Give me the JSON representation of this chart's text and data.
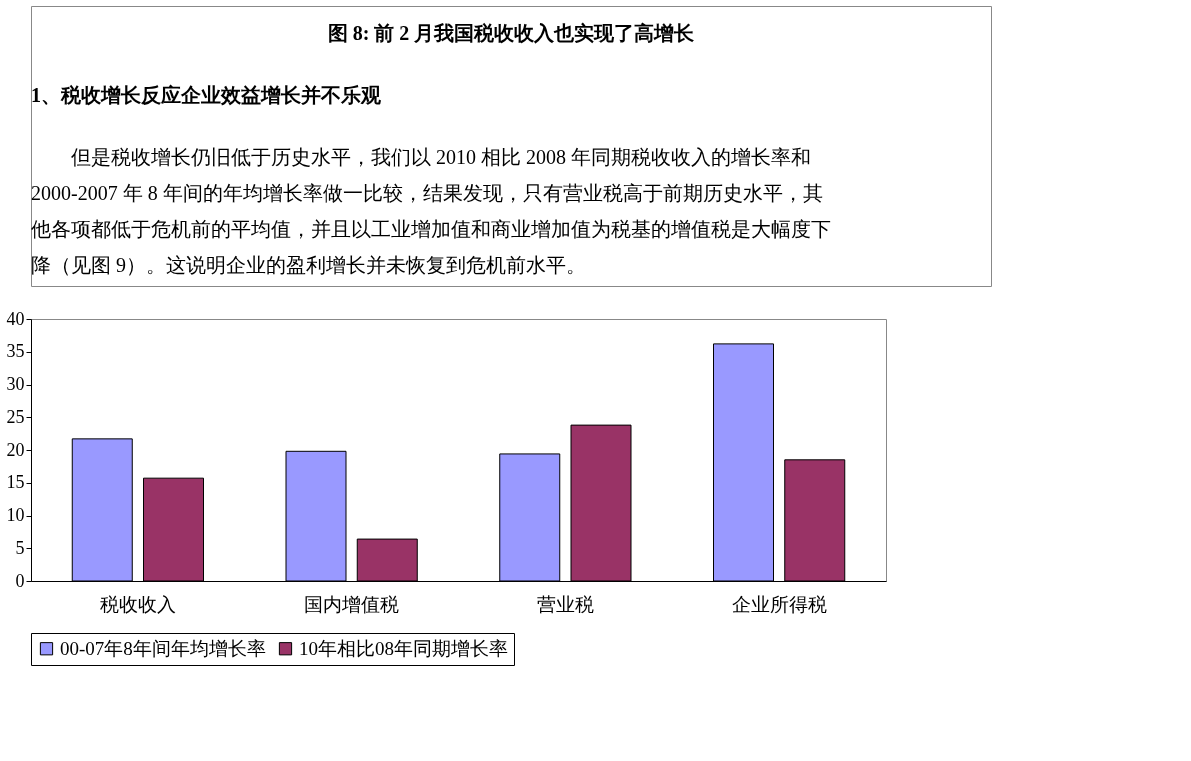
{
  "chart_data": {
    "type": "bar",
    "annotations": [
      "图 8:  前 2 月我国税收收入也实现了高增长",
      "1、税收增长反应企业效益增长并不乐观",
      "但是税收增长仍旧低于历史水平，我们以 2010 相比 2008 年同期税收收入的增长率和",
      "2000-2007 年 8 年间的年均增长率做一比较，结果发现，只有营业税高于前期历史水平，其",
      "他各项都低于危机前的平均值，并且以工业增加值和商业增加值为税基的增值税是大幅度下",
      "降（见图 9）。这说明企业的盈利增长并未恢复到危机前水平。"
    ],
    "categories": [
      "税收收入",
      "国内增值税",
      "营业税",
      "企业所得税"
    ],
    "series": [
      {
        "name": "00-07年8年间年均增长率",
        "color": "#9999ff",
        "values": [
          21.7,
          19.8,
          19.4,
          36.2
        ]
      },
      {
        "name": "10年相比08年同期增长率",
        "color": "#993366",
        "values": [
          15.7,
          6.4,
          23.8,
          18.5
        ]
      }
    ],
    "ylim": [
      0,
      40
    ],
    "yticks": [
      0,
      5,
      10,
      15,
      20,
      25,
      30,
      35,
      40
    ],
    "grid": false,
    "legend": "bottom"
  }
}
